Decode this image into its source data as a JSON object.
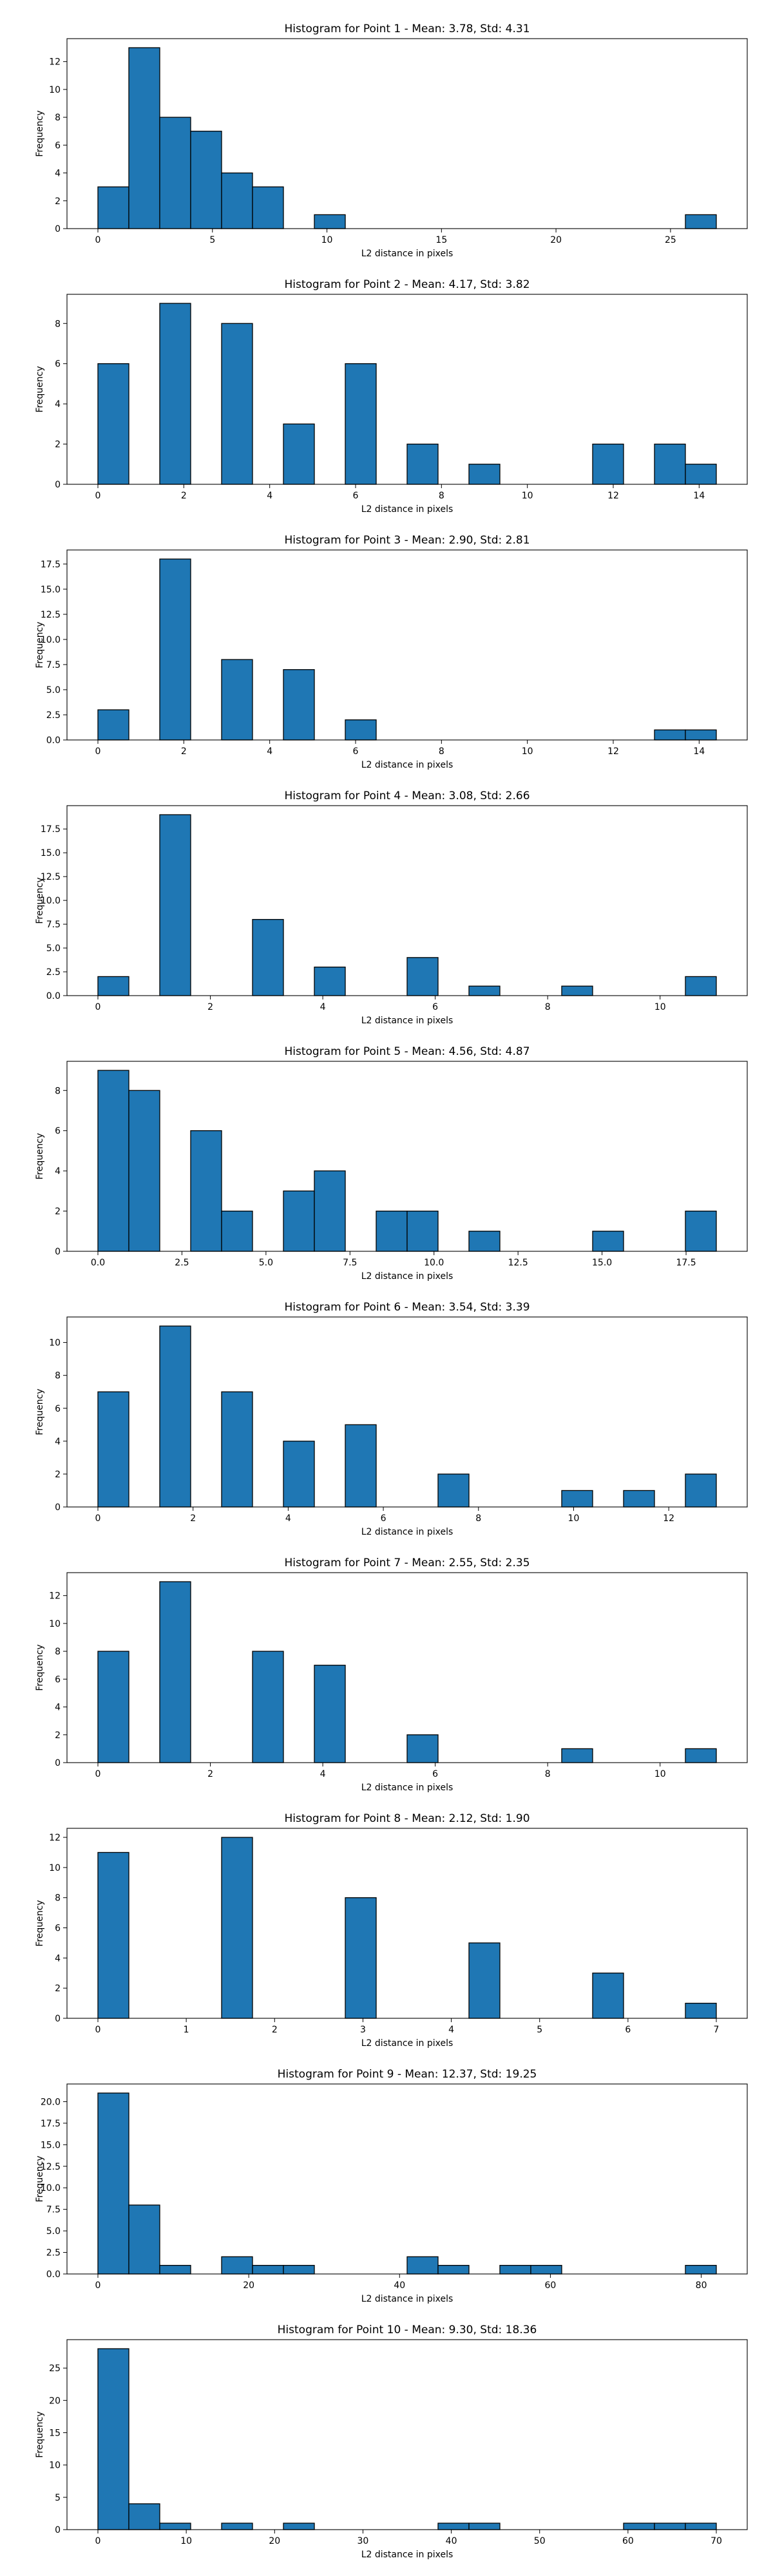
{
  "figure": {
    "background": "#ffffff",
    "bar_color": "#1f77b4",
    "edge_color": "#000000"
  },
  "chart_data": [
    {
      "type": "bar",
      "title": "Histogram for Point 1 - Mean: 3.78, Std: 4.31",
      "xlabel": "L2 distance in pixels",
      "ylabel": "Frequency",
      "xlim": [
        -1.35,
        28.35
      ],
      "ylim": [
        0,
        13.65
      ],
      "xticks": [
        0,
        5,
        10,
        15,
        20,
        25
      ],
      "xtick_labels": [
        "0",
        "5",
        "10",
        "15",
        "20",
        "25"
      ],
      "yticks": [
        0,
        2,
        4,
        6,
        8,
        10,
        12
      ],
      "ytick_labels": [
        "0",
        "2",
        "4",
        "6",
        "8",
        "10",
        "12"
      ],
      "bin_width": 1.35,
      "bins": [
        {
          "x0": 0.0,
          "x1": 1.35,
          "count": 3
        },
        {
          "x0": 1.35,
          "x1": 2.7,
          "count": 13
        },
        {
          "x0": 2.7,
          "x1": 4.05,
          "count": 8
        },
        {
          "x0": 4.05,
          "x1": 5.4,
          "count": 7
        },
        {
          "x0": 5.4,
          "x1": 6.75,
          "count": 4
        },
        {
          "x0": 6.75,
          "x1": 8.1,
          "count": 3
        },
        {
          "x0": 9.45,
          "x1": 10.8,
          "count": 1
        },
        {
          "x0": 25.65,
          "x1": 27.0,
          "count": 1
        }
      ]
    },
    {
      "type": "bar",
      "title": "Histogram for Point 2 - Mean: 4.17, Std: 3.82",
      "xlabel": "L2 distance in pixels",
      "ylabel": "Frequency",
      "xlim": [
        -0.72,
        15.12
      ],
      "ylim": [
        0,
        9.45
      ],
      "xticks": [
        0,
        2,
        4,
        6,
        8,
        10,
        12,
        14
      ],
      "xtick_labels": [
        "0",
        "2",
        "4",
        "6",
        "8",
        "10",
        "12",
        "14"
      ],
      "yticks": [
        0,
        2,
        4,
        6,
        8
      ],
      "ytick_labels": [
        "0",
        "2",
        "4",
        "6",
        "8"
      ],
      "bin_width": 0.72,
      "bins": [
        {
          "x0": 0.0,
          "x1": 0.72,
          "count": 6
        },
        {
          "x0": 1.44,
          "x1": 2.16,
          "count": 9
        },
        {
          "x0": 2.88,
          "x1": 3.6,
          "count": 8
        },
        {
          "x0": 4.32,
          "x1": 5.04,
          "count": 3
        },
        {
          "x0": 5.76,
          "x1": 6.48,
          "count": 6
        },
        {
          "x0": 7.2,
          "x1": 7.92,
          "count": 2
        },
        {
          "x0": 8.64,
          "x1": 9.36,
          "count": 1
        },
        {
          "x0": 11.52,
          "x1": 12.24,
          "count": 2
        },
        {
          "x0": 12.96,
          "x1": 13.68,
          "count": 2
        },
        {
          "x0": 13.68,
          "x1": 14.4,
          "count": 1
        }
      ]
    },
    {
      "type": "bar",
      "title": "Histogram for Point 3 - Mean: 2.90, Std: 2.81",
      "xlabel": "L2 distance in pixels",
      "ylabel": "Frequency",
      "xlim": [
        -0.72,
        15.12
      ],
      "ylim": [
        0,
        18.9
      ],
      "xticks": [
        0,
        2,
        4,
        6,
        8,
        10,
        12,
        14
      ],
      "xtick_labels": [
        "0",
        "2",
        "4",
        "6",
        "8",
        "10",
        "12",
        "14"
      ],
      "yticks": [
        0,
        2.5,
        5,
        7.5,
        10,
        12.5,
        15,
        17.5
      ],
      "ytick_labels": [
        "0.0",
        "2.5",
        "5.0",
        "7.5",
        "10.0",
        "12.5",
        "15.0",
        "17.5"
      ],
      "bin_width": 0.72,
      "bins": [
        {
          "x0": 0.0,
          "x1": 0.72,
          "count": 3
        },
        {
          "x0": 1.44,
          "x1": 2.16,
          "count": 18
        },
        {
          "x0": 2.88,
          "x1": 3.6,
          "count": 8
        },
        {
          "x0": 4.32,
          "x1": 5.04,
          "count": 7
        },
        {
          "x0": 5.76,
          "x1": 6.48,
          "count": 2
        },
        {
          "x0": 12.96,
          "x1": 13.68,
          "count": 1
        },
        {
          "x0": 13.68,
          "x1": 14.4,
          "count": 1
        }
      ]
    },
    {
      "type": "bar",
      "title": "Histogram for Point 4 - Mean: 3.08, Std: 2.66",
      "xlabel": "L2 distance in pixels",
      "ylabel": "Frequency",
      "xlim": [
        -0.55,
        11.55
      ],
      "ylim": [
        0,
        19.95
      ],
      "xticks": [
        0,
        2,
        4,
        6,
        8,
        10
      ],
      "xtick_labels": [
        "0",
        "2",
        "4",
        "6",
        "8",
        "10"
      ],
      "yticks": [
        0,
        2.5,
        5,
        7.5,
        10,
        12.5,
        15,
        17.5
      ],
      "ytick_labels": [
        "0.0",
        "2.5",
        "5.0",
        "7.5",
        "10.0",
        "12.5",
        "15.0",
        "17.5"
      ],
      "bin_width": 0.55,
      "bins": [
        {
          "x0": 0.0,
          "x1": 0.55,
          "count": 2
        },
        {
          "x0": 1.1,
          "x1": 1.65,
          "count": 19
        },
        {
          "x0": 2.75,
          "x1": 3.3,
          "count": 8
        },
        {
          "x0": 3.85,
          "x1": 4.4,
          "count": 3
        },
        {
          "x0": 5.5,
          "x1": 6.05,
          "count": 4
        },
        {
          "x0": 6.6,
          "x1": 7.15,
          "count": 1
        },
        {
          "x0": 8.25,
          "x1": 8.8,
          "count": 1
        },
        {
          "x0": 10.45,
          "x1": 11.0,
          "count": 2
        }
      ]
    },
    {
      "type": "bar",
      "title": "Histogram for Point 5 - Mean: 4.56, Std: 4.87",
      "xlabel": "L2 distance in pixels",
      "ylabel": "Frequency",
      "xlim": [
        -0.92,
        19.32
      ],
      "ylim": [
        0,
        9.45
      ],
      "xticks": [
        0,
        2.5,
        5,
        7.5,
        10,
        12.5,
        15,
        17.5
      ],
      "xtick_labels": [
        "0.0",
        "2.5",
        "5.0",
        "7.5",
        "10.0",
        "12.5",
        "15.0",
        "17.5"
      ],
      "yticks": [
        0,
        2,
        4,
        6,
        8
      ],
      "ytick_labels": [
        "0",
        "2",
        "4",
        "6",
        "8"
      ],
      "bin_width": 0.92,
      "bins": [
        {
          "x0": 0.0,
          "x1": 0.92,
          "count": 9
        },
        {
          "x0": 0.92,
          "x1": 1.84,
          "count": 8
        },
        {
          "x0": 2.76,
          "x1": 3.68,
          "count": 6
        },
        {
          "x0": 3.68,
          "x1": 4.6,
          "count": 2
        },
        {
          "x0": 5.52,
          "x1": 6.44,
          "count": 3
        },
        {
          "x0": 6.44,
          "x1": 7.36,
          "count": 4
        },
        {
          "x0": 8.28,
          "x1": 9.2,
          "count": 2
        },
        {
          "x0": 9.2,
          "x1": 10.12,
          "count": 2
        },
        {
          "x0": 11.04,
          "x1": 11.96,
          "count": 1
        },
        {
          "x0": 14.72,
          "x1": 15.64,
          "count": 1
        },
        {
          "x0": 17.48,
          "x1": 18.4,
          "count": 2
        }
      ]
    },
    {
      "type": "bar",
      "title": "Histogram for Point 6 - Mean: 3.54, Std: 3.39",
      "xlabel": "L2 distance in pixels",
      "ylabel": "Frequency",
      "xlim": [
        -0.65,
        13.65
      ],
      "ylim": [
        0,
        11.55
      ],
      "xticks": [
        0,
        2,
        4,
        6,
        8,
        10,
        12
      ],
      "xtick_labels": [
        "0",
        "2",
        "4",
        "6",
        "8",
        "10",
        "12"
      ],
      "yticks": [
        0,
        2,
        4,
        6,
        8,
        10
      ],
      "ytick_labels": [
        "0",
        "2",
        "4",
        "6",
        "8",
        "10"
      ],
      "bin_width": 0.65,
      "bins": [
        {
          "x0": 0.0,
          "x1": 0.65,
          "count": 7
        },
        {
          "x0": 1.3,
          "x1": 1.95,
          "count": 11
        },
        {
          "x0": 2.6,
          "x1": 3.25,
          "count": 7
        },
        {
          "x0": 3.9,
          "x1": 4.55,
          "count": 4
        },
        {
          "x0": 5.2,
          "x1": 5.85,
          "count": 5
        },
        {
          "x0": 7.15,
          "x1": 7.8,
          "count": 2
        },
        {
          "x0": 9.75,
          "x1": 10.4,
          "count": 1
        },
        {
          "x0": 11.05,
          "x1": 11.7,
          "count": 1
        },
        {
          "x0": 12.35,
          "x1": 13.0,
          "count": 2
        }
      ]
    },
    {
      "type": "bar",
      "title": "Histogram for Point 7 - Mean: 2.55, Std: 2.35",
      "xlabel": "L2 distance in pixels",
      "ylabel": "Frequency",
      "xlim": [
        -0.55,
        11.55
      ],
      "ylim": [
        0,
        13.65
      ],
      "xticks": [
        0,
        2,
        4,
        6,
        8,
        10
      ],
      "xtick_labels": [
        "0",
        "2",
        "4",
        "6",
        "8",
        "10"
      ],
      "yticks": [
        0,
        2,
        4,
        6,
        8,
        10,
        12
      ],
      "ytick_labels": [
        "0",
        "2",
        "4",
        "6",
        "8",
        "10",
        "12"
      ],
      "bin_width": 0.55,
      "bins": [
        {
          "x0": 0.0,
          "x1": 0.55,
          "count": 8
        },
        {
          "x0": 1.1,
          "x1": 1.65,
          "count": 13
        },
        {
          "x0": 2.75,
          "x1": 3.3,
          "count": 8
        },
        {
          "x0": 3.85,
          "x1": 4.4,
          "count": 7
        },
        {
          "x0": 5.5,
          "x1": 6.05,
          "count": 2
        },
        {
          "x0": 8.25,
          "x1": 8.8,
          "count": 1
        },
        {
          "x0": 10.45,
          "x1": 11.0,
          "count": 1
        }
      ]
    },
    {
      "type": "bar",
      "title": "Histogram for Point 8 - Mean: 2.12, Std: 1.90",
      "xlabel": "L2 distance in pixels",
      "ylabel": "Frequency",
      "xlim": [
        -0.35,
        7.35
      ],
      "ylim": [
        0,
        12.6
      ],
      "xticks": [
        0,
        1,
        2,
        3,
        4,
        5,
        6,
        7
      ],
      "xtick_labels": [
        "0",
        "1",
        "2",
        "3",
        "4",
        "5",
        "6",
        "7"
      ],
      "yticks": [
        0,
        2,
        4,
        6,
        8,
        10,
        12
      ],
      "ytick_labels": [
        "0",
        "2",
        "4",
        "6",
        "8",
        "10",
        "12"
      ],
      "bin_width": 0.35,
      "bins": [
        {
          "x0": 0.0,
          "x1": 0.35,
          "count": 11
        },
        {
          "x0": 1.4,
          "x1": 1.75,
          "count": 12
        },
        {
          "x0": 2.8,
          "x1": 3.15,
          "count": 8
        },
        {
          "x0": 4.2,
          "x1": 4.55,
          "count": 5
        },
        {
          "x0": 5.6,
          "x1": 5.95,
          "count": 3
        },
        {
          "x0": 6.65,
          "x1": 7.0,
          "count": 1
        }
      ]
    },
    {
      "type": "bar",
      "title": "Histogram for Point 9 - Mean: 12.37, Std: 19.25",
      "xlabel": "L2 distance in pixels",
      "ylabel": "Frequency",
      "xlim": [
        -4.1,
        86.1
      ],
      "ylim": [
        0,
        22.05
      ],
      "xticks": [
        0,
        20,
        40,
        60,
        80
      ],
      "xtick_labels": [
        "0",
        "20",
        "40",
        "60",
        "80"
      ],
      "yticks": [
        0,
        2.5,
        5,
        7.5,
        10,
        12.5,
        15,
        17.5,
        20
      ],
      "ytick_labels": [
        "0.0",
        "2.5",
        "5.0",
        "7.5",
        "10.0",
        "12.5",
        "15.0",
        "17.5",
        "20.0"
      ],
      "bin_width": 4.1,
      "bins": [
        {
          "x0": 0.0,
          "x1": 4.1,
          "count": 21
        },
        {
          "x0": 4.1,
          "x1": 8.2,
          "count": 8
        },
        {
          "x0": 8.2,
          "x1": 12.3,
          "count": 1
        },
        {
          "x0": 16.4,
          "x1": 20.5,
          "count": 2
        },
        {
          "x0": 20.5,
          "x1": 24.6,
          "count": 1
        },
        {
          "x0": 24.6,
          "x1": 28.7,
          "count": 1
        },
        {
          "x0": 41.0,
          "x1": 45.1,
          "count": 2
        },
        {
          "x0": 45.1,
          "x1": 49.2,
          "count": 1
        },
        {
          "x0": 53.3,
          "x1": 57.4,
          "count": 1
        },
        {
          "x0": 57.4,
          "x1": 61.5,
          "count": 1
        },
        {
          "x0": 77.9,
          "x1": 82.0,
          "count": 1
        }
      ]
    },
    {
      "type": "bar",
      "title": "Histogram for Point 10 - Mean: 9.30, Std: 18.36",
      "xlabel": "L2 distance in pixels",
      "ylabel": "Frequency",
      "xlim": [
        -3.5,
        73.5
      ],
      "ylim": [
        0,
        29.4
      ],
      "xticks": [
        0,
        10,
        20,
        30,
        40,
        50,
        60,
        70
      ],
      "xtick_labels": [
        "0",
        "10",
        "20",
        "30",
        "40",
        "50",
        "60",
        "70"
      ],
      "yticks": [
        0,
        5,
        10,
        15,
        20,
        25
      ],
      "ytick_labels": [
        "0",
        "5",
        "10",
        "15",
        "20",
        "25"
      ],
      "bin_width": 3.5,
      "bins": [
        {
          "x0": 0.0,
          "x1": 3.5,
          "count": 28
        },
        {
          "x0": 3.5,
          "x1": 7.0,
          "count": 4
        },
        {
          "x0": 7.0,
          "x1": 10.5,
          "count": 1
        },
        {
          "x0": 14.0,
          "x1": 17.5,
          "count": 1
        },
        {
          "x0": 21.0,
          "x1": 24.5,
          "count": 1
        },
        {
          "x0": 38.5,
          "x1": 42.0,
          "count": 1
        },
        {
          "x0": 42.0,
          "x1": 45.5,
          "count": 1
        },
        {
          "x0": 59.5,
          "x1": 63.0,
          "count": 1
        },
        {
          "x0": 63.0,
          "x1": 66.5,
          "count": 1
        },
        {
          "x0": 66.5,
          "x1": 70.0,
          "count": 1
        }
      ]
    }
  ]
}
